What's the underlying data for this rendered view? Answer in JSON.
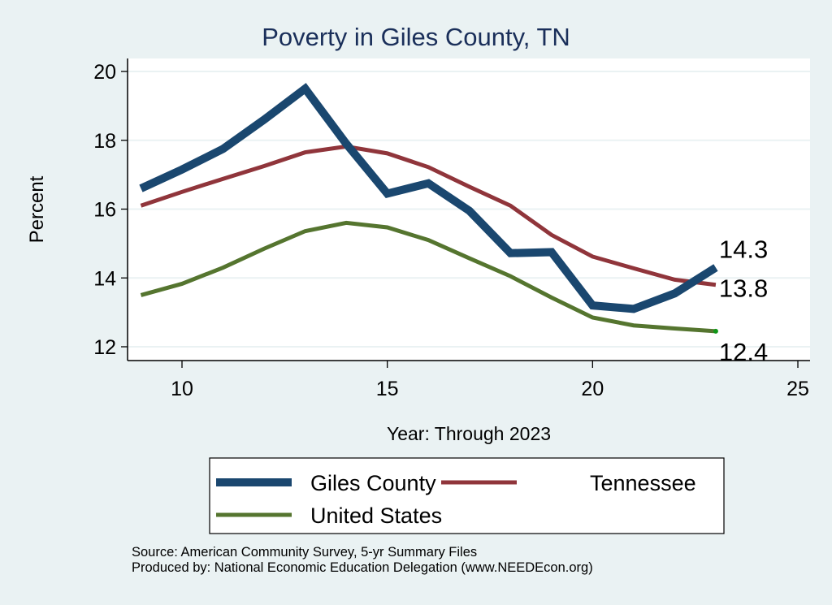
{
  "chart_data": {
    "type": "line",
    "title": "Poverty in Giles County, TN",
    "xlabel": "Year: Through 2023",
    "ylabel": "Percent",
    "xlim": [
      8.0,
      25.3
    ],
    "ylim": [
      11.6,
      20.4
    ],
    "xticks": [
      10,
      15,
      20,
      25
    ],
    "yticks": [
      12,
      14,
      16,
      18,
      20
    ],
    "grid": true,
    "legend_position": "bottom",
    "x": [
      9,
      10,
      11,
      12,
      13,
      14,
      15,
      16,
      17,
      18,
      19,
      20,
      21,
      22,
      23
    ],
    "series": [
      {
        "name": "Giles County",
        "color": "#1a476f",
        "width": 10,
        "values": [
          16.6,
          17.15,
          17.75,
          18.6,
          19.5,
          17.9,
          16.45,
          16.75,
          15.95,
          14.72,
          14.75,
          13.2,
          13.1,
          13.55,
          14.3
        ],
        "end_label": "14.3"
      },
      {
        "name": "Tennessee",
        "color": "#90353b",
        "width": 5,
        "values": [
          16.1,
          16.5,
          16.88,
          17.25,
          17.65,
          17.82,
          17.62,
          17.22,
          16.65,
          16.1,
          15.25,
          14.62,
          14.28,
          13.95,
          13.8
        ],
        "end_label": "13.8"
      },
      {
        "name": "United States",
        "color": "#55752f",
        "width": 5,
        "values": [
          13.5,
          13.83,
          14.3,
          14.85,
          15.36,
          15.6,
          15.47,
          15.1,
          14.57,
          14.05,
          13.43,
          12.85,
          12.62,
          12.53,
          12.45
        ],
        "end_label": "12.4"
      }
    ]
  },
  "notes": {
    "source": "Source: American Community Survey, 5-yr Summary Files",
    "produced_by": "Produced by: National Economic Education Delegation (www.NEEDEcon.org)"
  }
}
